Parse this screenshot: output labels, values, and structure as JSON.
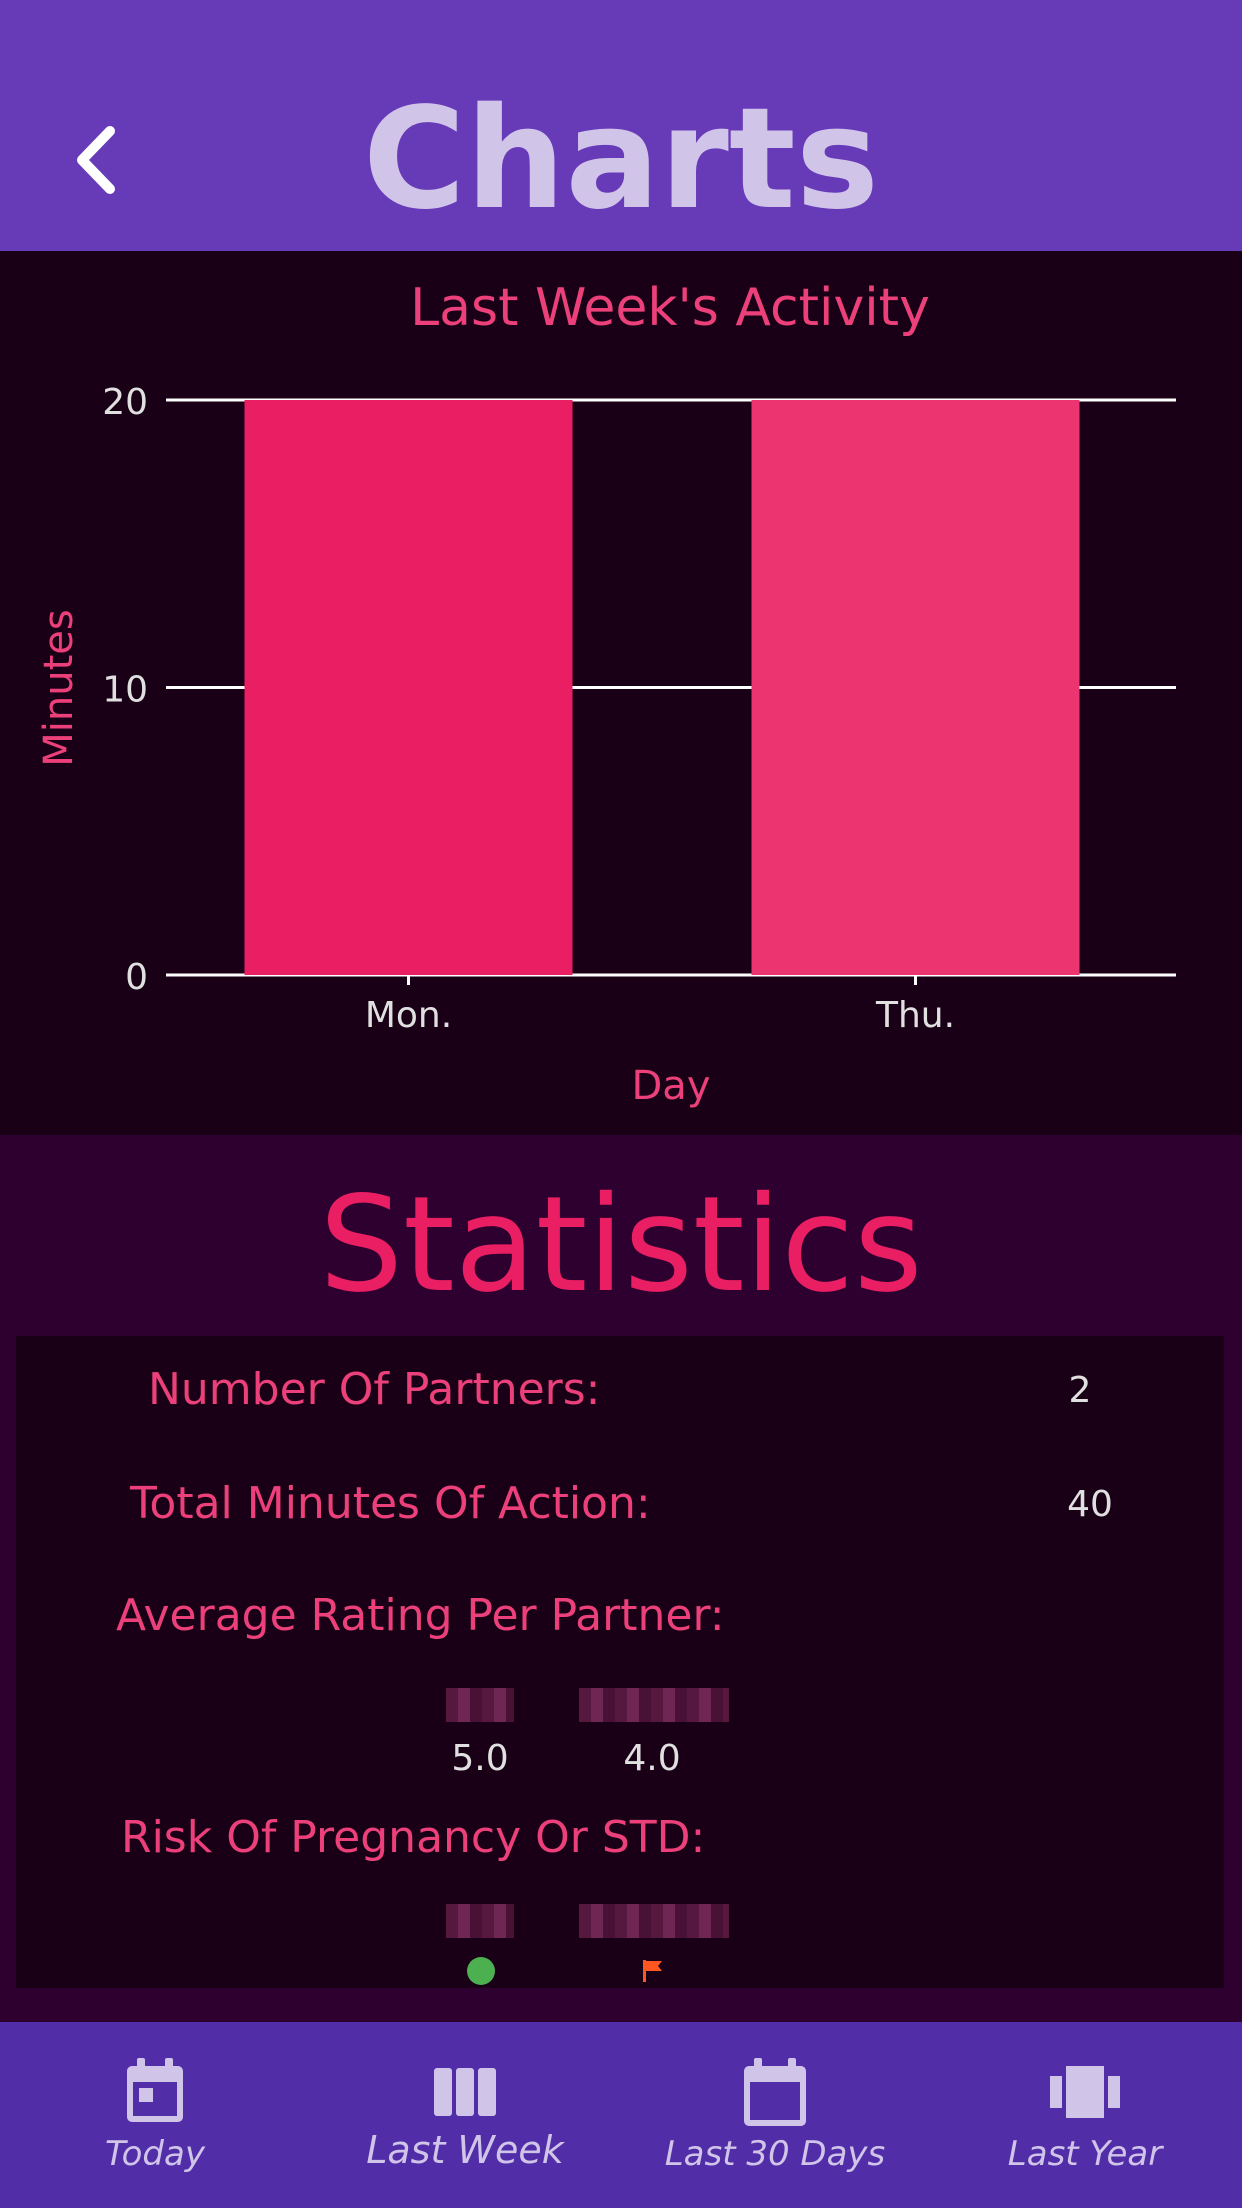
{
  "header": {
    "title": "Charts",
    "back_icon": "chevron-left-icon"
  },
  "chart_data": {
    "type": "bar",
    "title": "Last Week's Activity",
    "xlabel": "Day",
    "ylabel": "Minutes",
    "categories": [
      "Mon.",
      "Thu."
    ],
    "values": [
      20,
      20
    ],
    "yticks": [
      "0",
      "10",
      "20"
    ],
    "ylim": [
      0,
      20
    ],
    "grid": true,
    "colors": [
      "#e91e63",
      "#ec3470"
    ]
  },
  "statistics": {
    "title": "Statistics",
    "partners_label": "Number Of Partners:",
    "partners_value": "2",
    "minutes_label": "Total Minutes Of Action:",
    "minutes_value": "40",
    "rating_label": "Average Rating Per Partner:",
    "ratings": [
      "5.0",
      "4.0"
    ],
    "risk_label": "Risk Of Pregnancy Or STD:",
    "risk_icons": [
      "green-dot-icon",
      "red-flag-icon"
    ]
  },
  "nav": {
    "items": [
      {
        "label": "Today",
        "icon": "calendar-day-icon"
      },
      {
        "label": "Last Week",
        "icon": "columns-icon"
      },
      {
        "label": "Last 30 Days",
        "icon": "calendar-icon"
      },
      {
        "label": "Last Year",
        "icon": "carousel-icon"
      }
    ]
  },
  "colors": {
    "header": "#673ab7",
    "nav": "#512da8",
    "accent": "#e91e63",
    "panel": "#1a0017"
  }
}
